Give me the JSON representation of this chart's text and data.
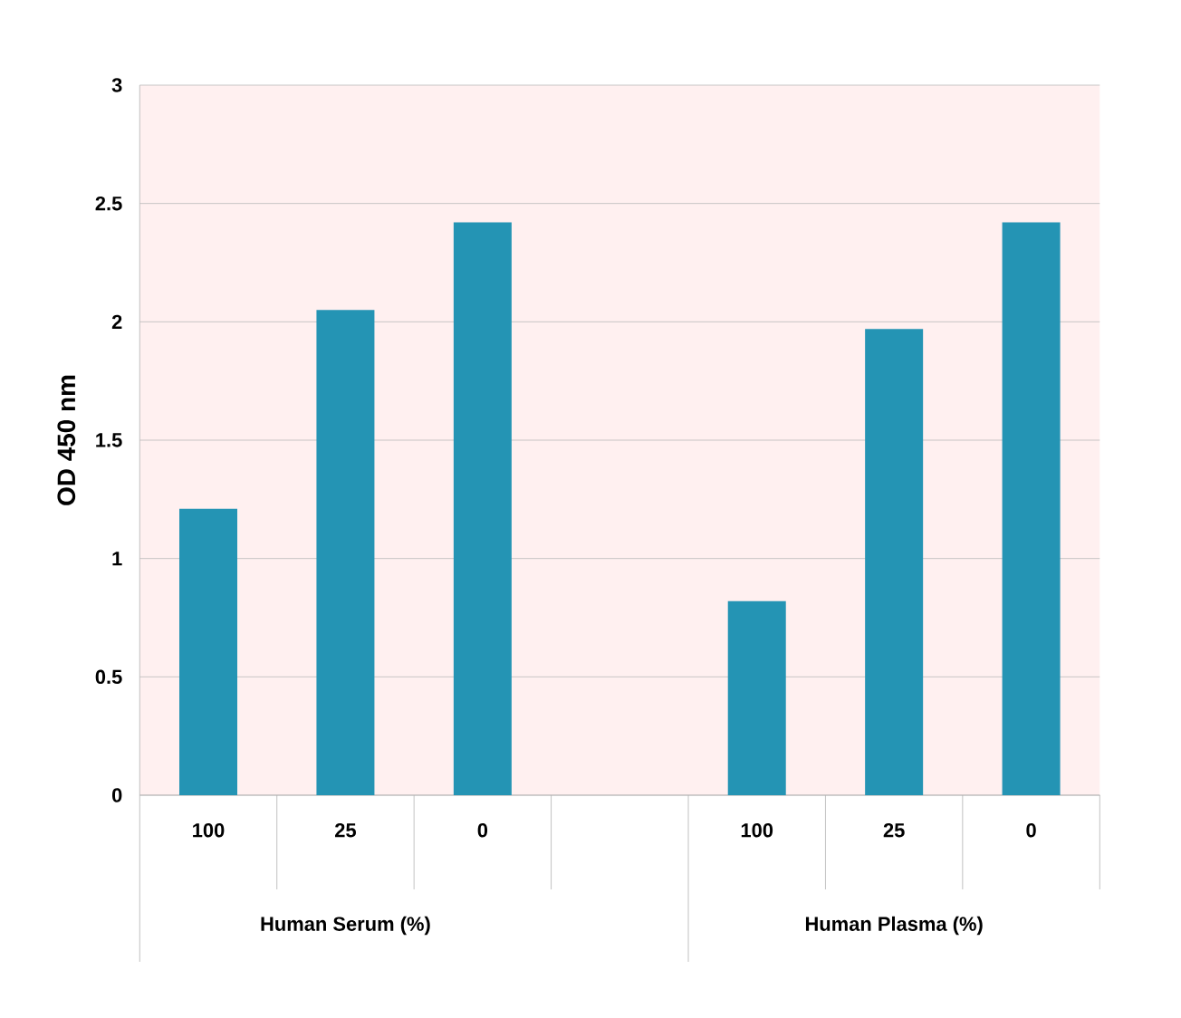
{
  "chart_data": {
    "type": "bar",
    "ylabel": "OD 450 nm",
    "categories": [
      "100",
      "25",
      "0",
      null,
      "100",
      "25",
      "0"
    ],
    "values": [
      1.21,
      2.05,
      2.42,
      null,
      0.82,
      1.97,
      2.42
    ],
    "color": "#2494b4",
    "ylim": [
      0,
      3
    ],
    "yticks": [
      0,
      0.5,
      1,
      1.5,
      2,
      2.5,
      3
    ],
    "grid": "y",
    "annotations": [
      "Human Serum (%)",
      "Human Plasma (%)"
    ]
  }
}
